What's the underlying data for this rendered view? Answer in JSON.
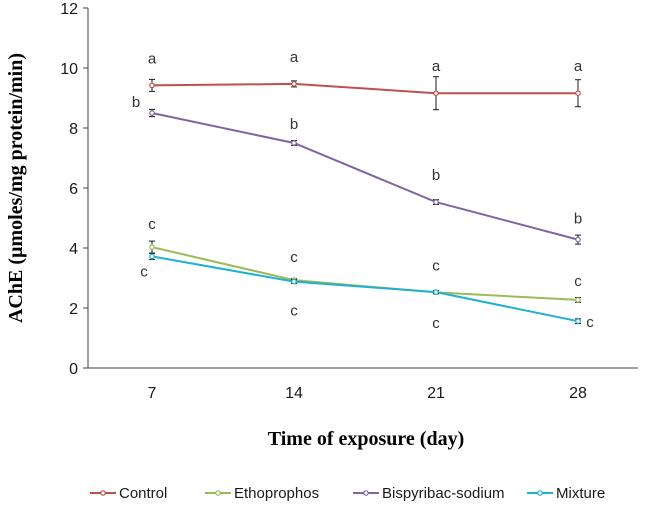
{
  "chart_data": {
    "type": "line",
    "title": "",
    "xlabel": "Time of exposure (day)",
    "ylabel": "AChE (µmoles/mg protein/min)",
    "categories": [
      "7",
      "14",
      "21",
      "28"
    ],
    "ylim": [
      0,
      12
    ],
    "yticks": [
      0,
      2,
      4,
      6,
      8,
      10,
      12
    ],
    "grid": false,
    "legend_position": "bottom",
    "series": [
      {
        "name": "Control",
        "color": "#c0504d",
        "values": [
          9.42,
          9.47,
          9.16,
          9.16
        ],
        "errors": [
          0.2,
          0.1,
          0.55,
          0.45
        ],
        "labels": [
          "a",
          "a",
          "a",
          "a"
        ]
      },
      {
        "name": "Ethoprophos",
        "color": "#9bbb59",
        "values": [
          4.03,
          2.93,
          2.52,
          2.27
        ],
        "errors": [
          0.2,
          0.05,
          0.05,
          0.08
        ],
        "labels": [
          "c",
          "c",
          "c",
          "c"
        ]
      },
      {
        "name": "Bispyribac-sodium",
        "color": "#8064a2",
        "values": [
          8.5,
          7.5,
          5.53,
          4.28
        ],
        "errors": [
          0.12,
          0.08,
          0.08,
          0.15
        ],
        "labels": [
          "b",
          "b",
          "b",
          "b"
        ]
      },
      {
        "name": "Mixture",
        "color": "#1fb0d4",
        "values": [
          3.72,
          2.88,
          2.53,
          1.56
        ],
        "errors": [
          0.1,
          0.06,
          0.05,
          0.08
        ],
        "labels": [
          "c",
          "c",
          "c",
          "c"
        ]
      }
    ]
  }
}
